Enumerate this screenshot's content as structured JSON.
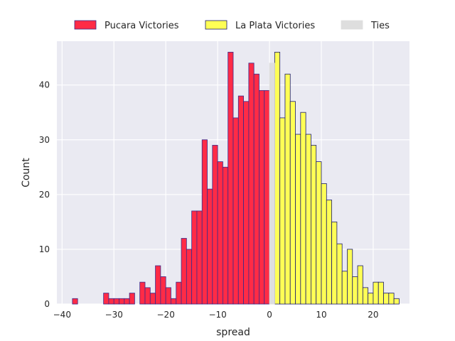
{
  "chart_data": {
    "type": "bar",
    "subtype": "histogram",
    "xlabel": "spread",
    "ylabel": "Count",
    "xlim": [
      -41,
      27
    ],
    "ylim": [
      0,
      48
    ],
    "xticks": [
      -40,
      -30,
      -20,
      -10,
      0,
      10,
      20
    ],
    "yticks": [
      0,
      10,
      20,
      30,
      40
    ],
    "xtick_labels": [
      "−40",
      "−30",
      "−20",
      "−10",
      "0",
      "10",
      "20"
    ],
    "ytick_labels": [
      "0",
      "10",
      "20",
      "30",
      "40"
    ],
    "grid": true,
    "background": "#eaeaf2",
    "legend_position": "top-center",
    "series": [
      {
        "name": "Pucara Victories",
        "fill": "#ff2b46",
        "edge": "#3b2a8a",
        "x": [
          -38,
          -32,
          -31,
          -30,
          -29,
          -28,
          -27,
          -25,
          -24,
          -23,
          -22,
          -21,
          -20,
          -19,
          -18,
          -17,
          -16,
          -15,
          -14,
          -13,
          -12,
          -11,
          -10,
          -9,
          -8,
          -7,
          -6,
          -5,
          -4,
          -3,
          -2,
          -1
        ],
        "values": [
          1,
          2,
          1,
          1,
          1,
          1,
          2,
          4,
          3,
          2,
          7,
          5,
          3,
          1,
          4,
          12,
          10,
          17,
          17,
          30,
          21,
          29,
          26,
          25,
          46,
          34,
          38,
          37,
          44,
          42,
          39,
          39
        ]
      },
      {
        "name": "La Plata Victories",
        "fill": "#ffff55",
        "edge": "#1a1a6e",
        "x": [
          1,
          2,
          3,
          4,
          5,
          6,
          7,
          8,
          9,
          10,
          11,
          12,
          13,
          14,
          15,
          16,
          17,
          18,
          19,
          20,
          21,
          22,
          23,
          24
        ],
        "values": [
          46,
          34,
          42,
          37,
          31,
          35,
          31,
          29,
          26,
          22,
          19,
          15,
          11,
          6,
          10,
          5,
          7,
          3,
          2,
          4,
          4,
          2,
          2,
          1
        ]
      },
      {
        "name": "Ties",
        "fill": "#dedede",
        "edge": "#dedede",
        "x": [
          0
        ],
        "values": [
          44
        ]
      }
    ]
  }
}
